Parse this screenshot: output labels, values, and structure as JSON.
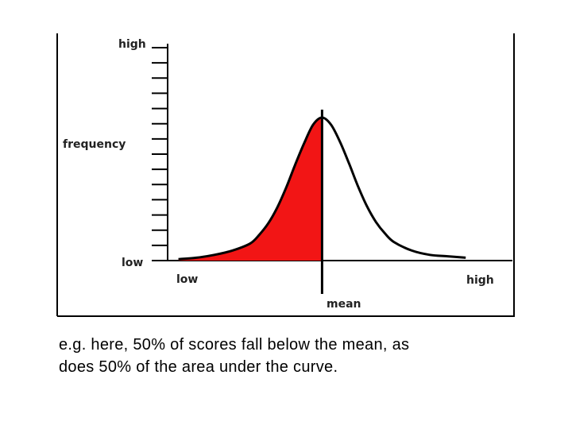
{
  "chart_data": {
    "type": "area",
    "title": "",
    "ylabel": "frequency",
    "xlabel": "mean",
    "y_tick_labels": {
      "top": "high",
      "bottom": "low"
    },
    "x_tick_labels": {
      "left": "low",
      "right": "high"
    },
    "y_tick_count": 15,
    "curve": {
      "x": [
        -4.0,
        -3.5,
        -3.0,
        -2.5,
        -2.0,
        -1.75,
        -1.5,
        -1.25,
        -1.0,
        -0.75,
        -0.5,
        -0.25,
        0.0,
        0.25,
        0.5,
        0.75,
        1.0,
        1.25,
        1.5,
        1.75,
        2.0,
        2.5,
        3.0,
        3.5,
        4.0
      ],
      "y": [
        0.01,
        0.02,
        0.04,
        0.07,
        0.12,
        0.18,
        0.26,
        0.37,
        0.51,
        0.67,
        0.82,
        0.95,
        1.0,
        0.95,
        0.83,
        0.68,
        0.52,
        0.38,
        0.27,
        0.19,
        0.13,
        0.07,
        0.04,
        0.03,
        0.02
      ]
    },
    "xlim": [
      -4.3,
      5.3
    ],
    "ylim": [
      0,
      1.0
    ],
    "shaded_region": {
      "from": -4.0,
      "to": 0.0,
      "color": "#f21515"
    },
    "mean_x": 0.0
  },
  "caption": {
    "line1": "e.g. here, 50% of scores fall below the mean, as",
    "line2": "does 50% of the area under the curve."
  }
}
